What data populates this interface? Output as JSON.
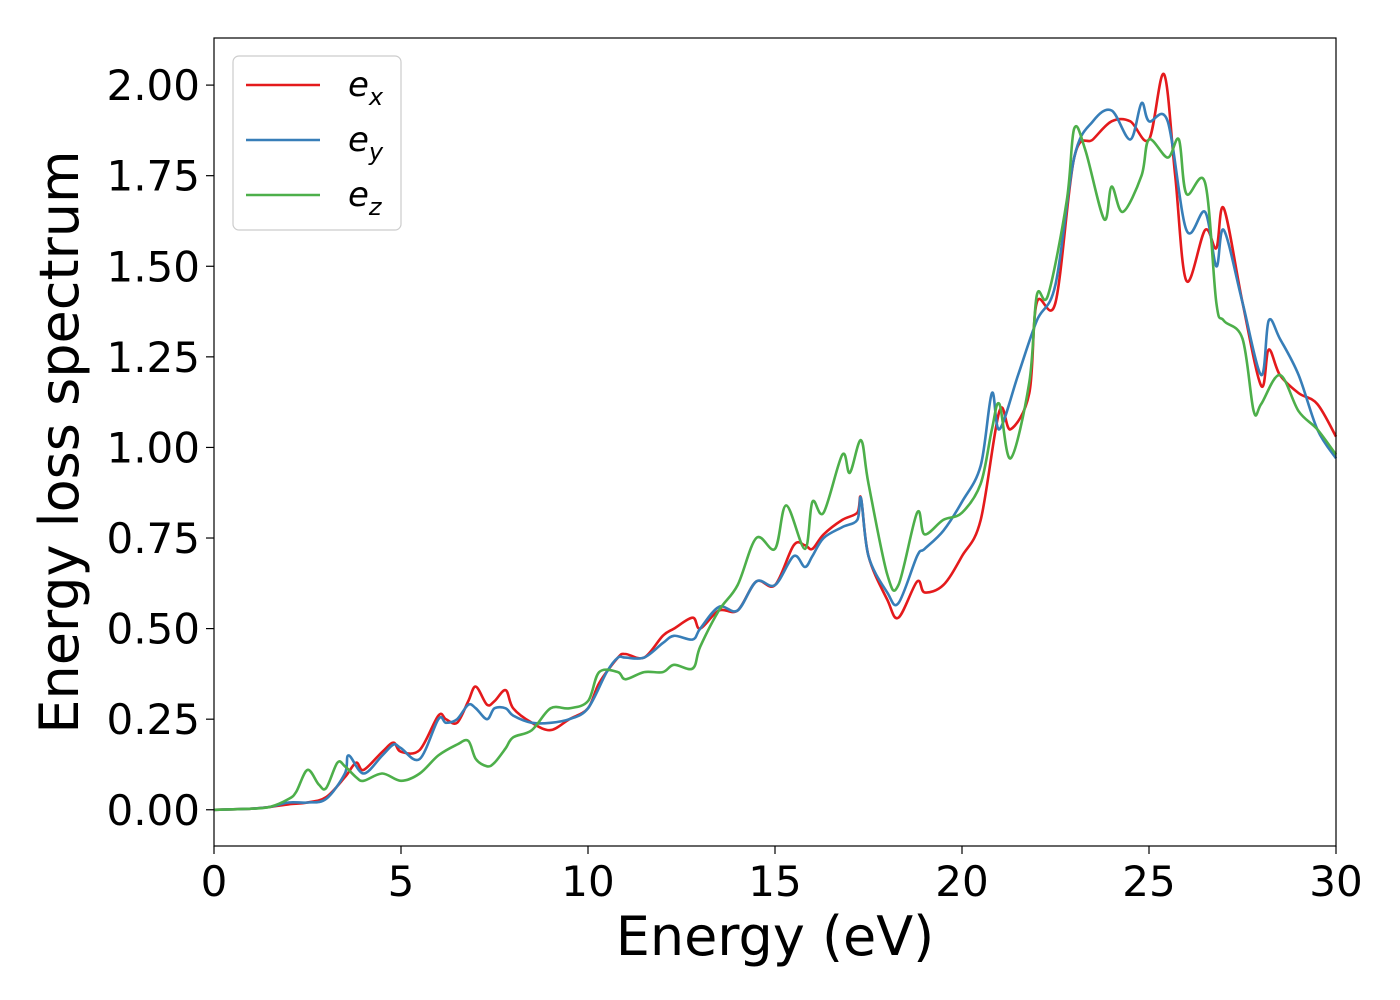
{
  "chart_data": {
    "type": "line",
    "xlabel": "Energy (eV)",
    "ylabel": "Energy loss spectrum",
    "xlim": [
      0,
      30
    ],
    "ylim": [
      -0.1,
      2.13
    ],
    "xticks": [
      0,
      5,
      10,
      15,
      20,
      25,
      30
    ],
    "yticks": [
      0.0,
      0.25,
      0.5,
      0.75,
      1.0,
      1.25,
      1.5,
      1.75,
      2.0
    ],
    "grid": false,
    "legend_position": "top-left",
    "series": [
      {
        "name": "e",
        "subscript": "x",
        "color": "#e41a1c",
        "x": [
          0,
          1,
          1.5,
          2,
          2.5,
          3,
          3.5,
          3.8,
          4,
          4.5,
          4.8,
          5,
          5.5,
          6,
          6.2,
          6.5,
          6.8,
          7,
          7.3,
          7.5,
          7.8,
          8,
          8.5,
          9,
          9.5,
          10,
          10.3,
          10.8,
          11,
          11.5,
          12,
          12.3,
          12.8,
          13,
          13.5,
          14,
          14.5,
          15,
          15.5,
          15.8,
          16,
          16.3,
          16.8,
          17.2,
          17.3,
          17.5,
          18,
          18.3,
          18.8,
          19,
          19.5,
          20,
          20.5,
          21,
          21.3,
          21.8,
          22,
          22.5,
          23,
          23.5,
          24,
          24.5,
          25,
          25.4,
          25.7,
          26,
          26.5,
          26.8,
          27,
          27.5,
          28,
          28.2,
          28.5,
          29,
          29.5,
          30
        ],
        "y": [
          0,
          0.003,
          0.008,
          0.015,
          0.02,
          0.035,
          0.09,
          0.13,
          0.11,
          0.16,
          0.185,
          0.16,
          0.165,
          0.26,
          0.25,
          0.24,
          0.3,
          0.34,
          0.29,
          0.3,
          0.33,
          0.28,
          0.24,
          0.22,
          0.25,
          0.28,
          0.35,
          0.42,
          0.43,
          0.42,
          0.48,
          0.5,
          0.53,
          0.5,
          0.55,
          0.55,
          0.63,
          0.62,
          0.73,
          0.73,
          0.72,
          0.76,
          0.8,
          0.82,
          0.86,
          0.7,
          0.58,
          0.53,
          0.63,
          0.6,
          0.62,
          0.7,
          0.8,
          1.1,
          1.05,
          1.15,
          1.4,
          1.4,
          1.8,
          1.85,
          1.9,
          1.9,
          1.85,
          2.03,
          1.75,
          1.46,
          1.6,
          1.55,
          1.66,
          1.4,
          1.17,
          1.27,
          1.2,
          1.15,
          1.12,
          1.03
        ]
      },
      {
        "name": "e",
        "subscript": "y",
        "color": "#377eb8",
        "x": [
          0,
          1,
          1.5,
          2,
          2.5,
          3,
          3.5,
          3.6,
          4,
          4.5,
          4.8,
          5,
          5.5,
          6,
          6.2,
          6.5,
          6.8,
          7,
          7.3,
          7.5,
          7.8,
          8,
          8.5,
          9,
          9.5,
          10,
          10.5,
          10.8,
          11,
          11.5,
          12,
          12.3,
          12.8,
          13,
          13.5,
          14,
          14.5,
          15,
          15.5,
          15.8,
          16,
          16.3,
          16.8,
          17.2,
          17.3,
          17.5,
          18,
          18.3,
          18.8,
          19,
          19.5,
          20,
          20.5,
          20.8,
          21,
          21.5,
          22,
          22.5,
          23,
          23.5,
          24,
          24.5,
          24.8,
          25,
          25.5,
          26,
          26.5,
          26.8,
          27,
          27.5,
          28,
          28.2,
          28.5,
          29,
          29.5,
          30
        ],
        "y": [
          0,
          0.003,
          0.008,
          0.02,
          0.02,
          0.03,
          0.1,
          0.15,
          0.1,
          0.15,
          0.18,
          0.17,
          0.14,
          0.25,
          0.24,
          0.25,
          0.29,
          0.28,
          0.25,
          0.28,
          0.28,
          0.26,
          0.24,
          0.24,
          0.25,
          0.28,
          0.38,
          0.42,
          0.42,
          0.42,
          0.46,
          0.48,
          0.47,
          0.5,
          0.56,
          0.55,
          0.63,
          0.62,
          0.7,
          0.67,
          0.7,
          0.75,
          0.78,
          0.8,
          0.86,
          0.7,
          0.6,
          0.57,
          0.7,
          0.72,
          0.77,
          0.85,
          0.95,
          1.15,
          1.05,
          1.2,
          1.35,
          1.45,
          1.8,
          1.9,
          1.93,
          1.85,
          1.95,
          1.9,
          1.9,
          1.6,
          1.65,
          1.5,
          1.6,
          1.4,
          1.2,
          1.35,
          1.3,
          1.2,
          1.05,
          0.97
        ]
      },
      {
        "name": "e",
        "subscript": "z",
        "color": "#4daf4a",
        "x": [
          0,
          1,
          1.5,
          2,
          2.2,
          2.5,
          2.8,
          3,
          3.3,
          3.5,
          3.8,
          4,
          4.5,
          5,
          5.5,
          6,
          6.5,
          6.8,
          7,
          7.3,
          7.5,
          7.8,
          8,
          8.5,
          9,
          9.5,
          10,
          10.3,
          10.8,
          11,
          11.5,
          12,
          12.3,
          12.8,
          13,
          13.5,
          14,
          14.5,
          15,
          15.3,
          15.8,
          16,
          16.3,
          16.8,
          17,
          17.3,
          17.5,
          18,
          18.3,
          18.8,
          19,
          19.5,
          20,
          20.5,
          20.8,
          21,
          21.3,
          21.8,
          22,
          22.3,
          22.8,
          23,
          23.3,
          23.8,
          24,
          24.3,
          24.8,
          25,
          25.5,
          25.8,
          26,
          26.5,
          26.8,
          27,
          27.5,
          27.8,
          28,
          28.5,
          29,
          29.5,
          30
        ],
        "y": [
          0,
          0.003,
          0.008,
          0.03,
          0.05,
          0.11,
          0.07,
          0.06,
          0.13,
          0.12,
          0.09,
          0.08,
          0.1,
          0.08,
          0.1,
          0.15,
          0.18,
          0.19,
          0.14,
          0.12,
          0.13,
          0.17,
          0.2,
          0.22,
          0.28,
          0.28,
          0.3,
          0.38,
          0.38,
          0.36,
          0.38,
          0.38,
          0.4,
          0.39,
          0.45,
          0.55,
          0.62,
          0.75,
          0.72,
          0.84,
          0.72,
          0.85,
          0.82,
          0.98,
          0.93,
          1.02,
          0.9,
          0.65,
          0.62,
          0.82,
          0.76,
          0.8,
          0.82,
          0.9,
          1.05,
          1.12,
          0.97,
          1.18,
          1.42,
          1.42,
          1.68,
          1.88,
          1.82,
          1.63,
          1.72,
          1.65,
          1.75,
          1.85,
          1.8,
          1.85,
          1.7,
          1.73,
          1.4,
          1.35,
          1.3,
          1.1,
          1.12,
          1.2,
          1.1,
          1.05,
          0.98
        ]
      }
    ]
  }
}
